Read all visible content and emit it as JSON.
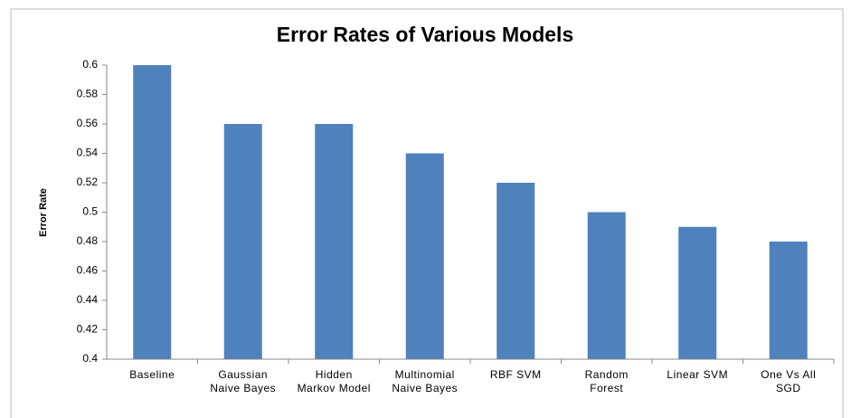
{
  "chart_data": {
    "type": "bar",
    "title": "Error Rates of Various Models",
    "y_label": "Error Rate",
    "categories": [
      "Baseline",
      "Gaussian Naive Bayes",
      "Hidden Markov Model",
      "Multinomial Naive Bayes",
      "RBF SVM",
      "Random Forest",
      "Linear SVM",
      "One Vs All SGD"
    ],
    "values": [
      0.6,
      0.56,
      0.56,
      0.54,
      0.52,
      0.5,
      0.49,
      0.48
    ],
    "color": "#4f81bd",
    "ylim": [
      0.4,
      0.6
    ],
    "yticks": [
      0.4,
      0.42,
      0.44,
      0.46,
      0.48,
      0.5,
      0.52,
      0.54,
      0.56,
      0.58,
      0.6
    ],
    "grid": false
  }
}
